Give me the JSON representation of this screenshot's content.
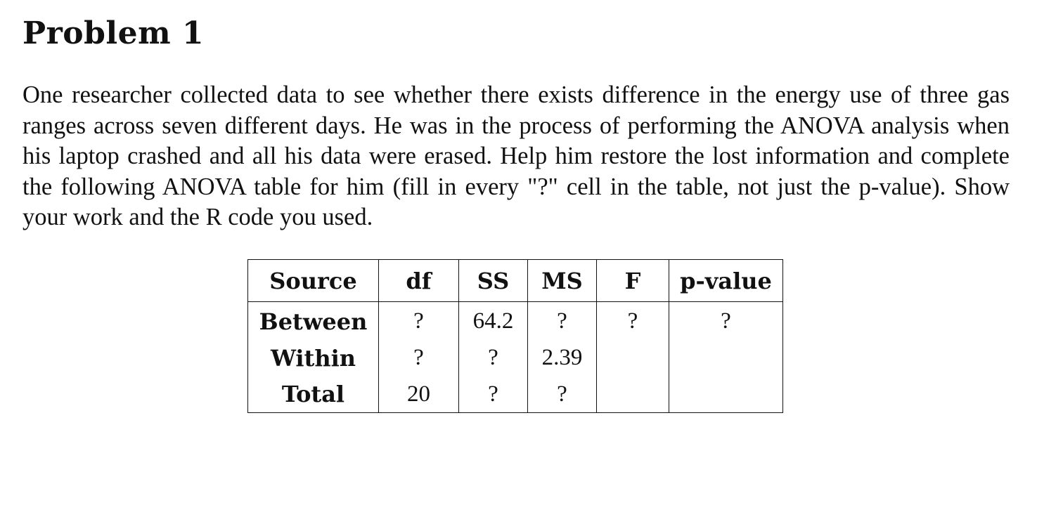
{
  "problem": {
    "title": "Problem 1",
    "text": "One researcher collected data to see whether there exists difference in the energy use of three gas ranges across seven different days. He was in the process of performing the ANOVA analysis when his laptop crashed and all his data were erased. Help him restore the lost information and complete the following ANOVA table for him (fill in every \"?\" cell in the table, not just the p-value). Show your work and the R code you used."
  },
  "anova_table": {
    "headers": {
      "source": "Source",
      "df": "df",
      "ss": "SS",
      "ms": "MS",
      "f": "F",
      "p_value": "p-value"
    },
    "rows": {
      "between": {
        "source": "Between",
        "df": "?",
        "ss": "64.2",
        "ms": "?",
        "f": "?",
        "p_value": "?"
      },
      "within": {
        "source": "Within",
        "df": "?",
        "ss": "?",
        "ms": "2.39",
        "f": "",
        "p_value": ""
      },
      "total": {
        "source": "Total",
        "df": "20",
        "ss": "?",
        "ms": "?",
        "f": "",
        "p_value": ""
      }
    }
  }
}
